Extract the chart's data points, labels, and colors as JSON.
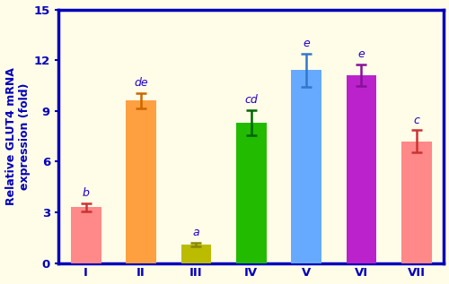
{
  "categories": [
    "I",
    "II",
    "III",
    "IV",
    "V",
    "VI",
    "VII"
  ],
  "values": [
    3.3,
    9.6,
    1.1,
    8.3,
    11.4,
    11.1,
    7.2
  ],
  "errors": [
    0.25,
    0.45,
    0.12,
    0.75,
    1.0,
    0.65,
    0.65
  ],
  "bar_colors": [
    "#FF8888",
    "#FFA040",
    "#BBBB00",
    "#22BB00",
    "#66AAFF",
    "#BB22CC",
    "#FF8888"
  ],
  "error_colors": [
    "#CC3333",
    "#CC6600",
    "#888800",
    "#006600",
    "#3377CC",
    "#881199",
    "#CC3333"
  ],
  "labels": [
    "b",
    "de",
    "a",
    "cd",
    "e",
    "e",
    "c"
  ],
  "label_color": "#2200CC",
  "ylabel": "Relative GLUT4 mRNA\nexpression (fold)",
  "ylim": [
    0,
    15
  ],
  "yticks": [
    0,
    3,
    6,
    9,
    12,
    15
  ],
  "background_color": "#FFFCE8",
  "axis_color": "#0000BB",
  "border_color": "#0000BB",
  "label_fontsize": 9,
  "bar_width": 0.55,
  "figsize": [
    5.0,
    3.17
  ],
  "dpi": 100
}
